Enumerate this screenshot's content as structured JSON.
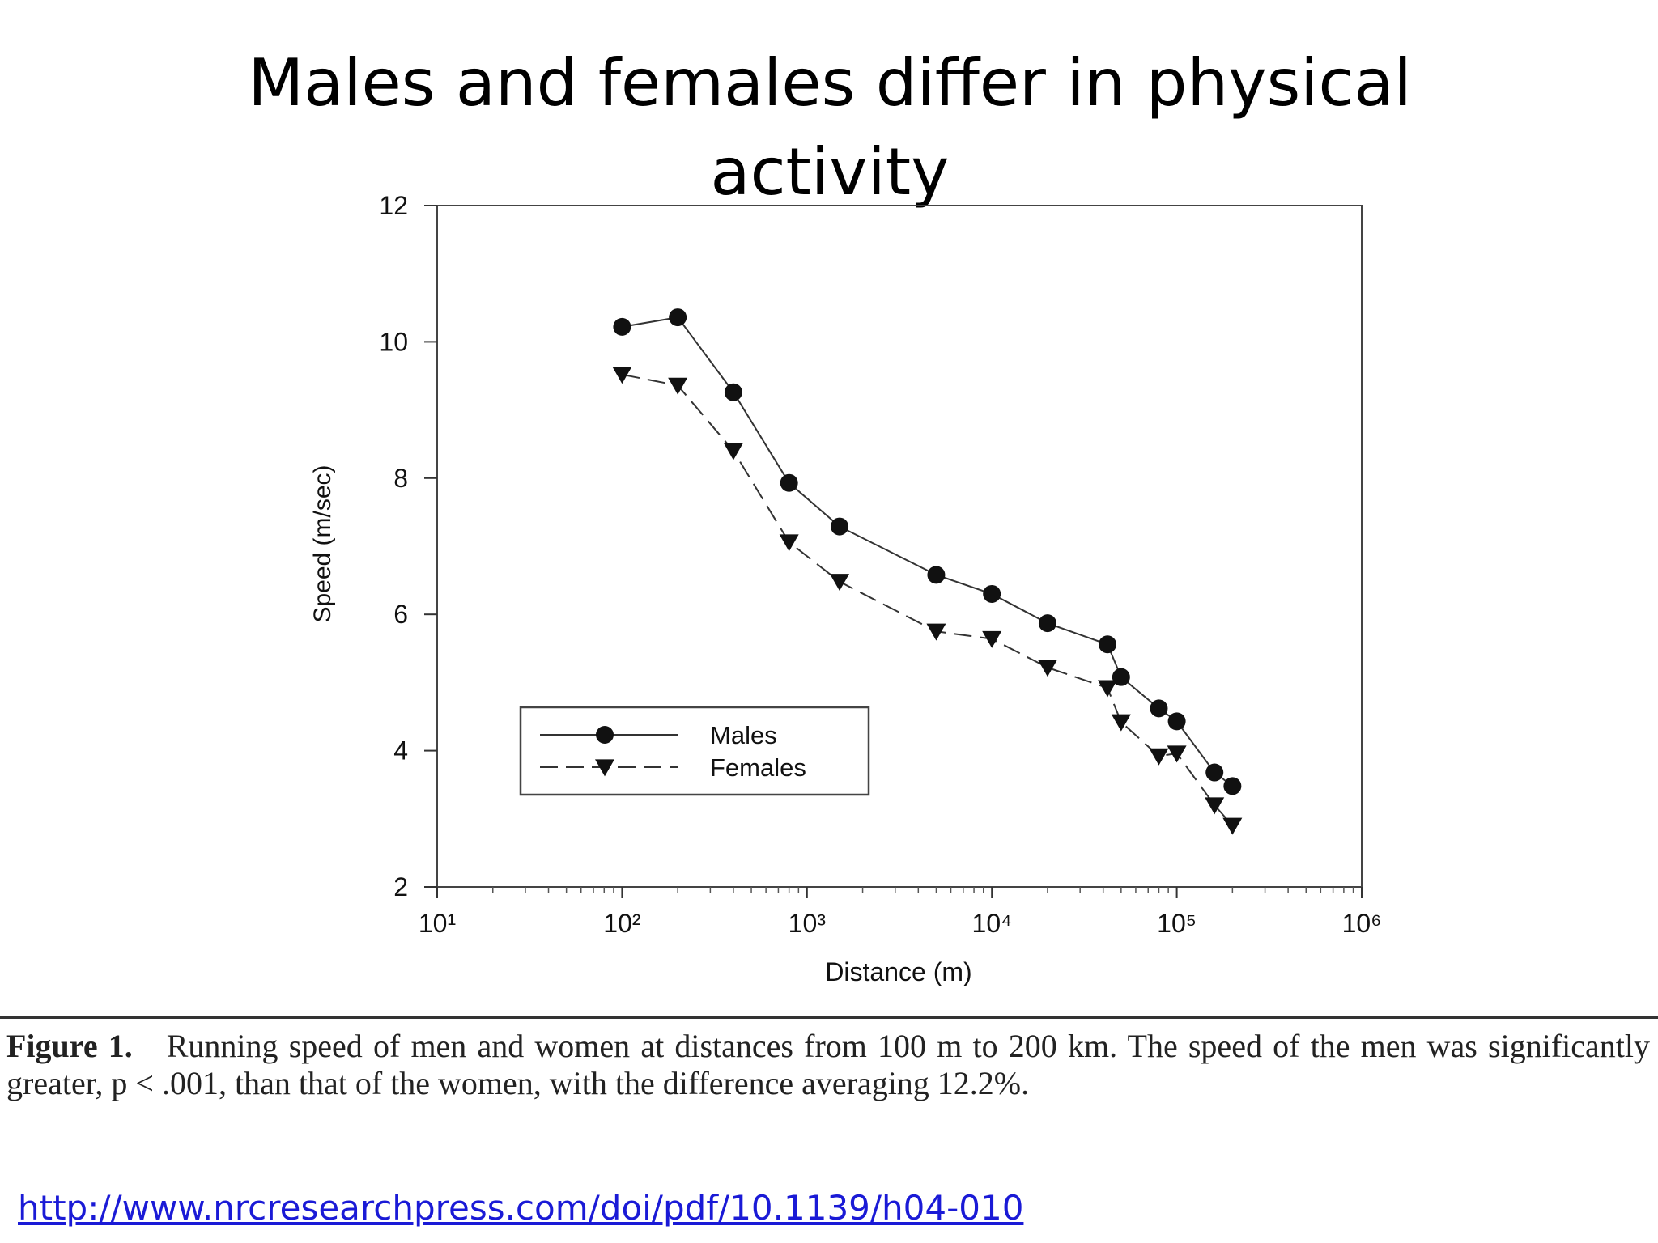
{
  "slide": {
    "title_line1": "Males and females differ in physical",
    "title_line2": "activity",
    "caption_label": "Figure 1.",
    "caption_text": "Running speed of men and women at distances from 100 m to 200 km. The speed of the men was significantly greater, p < .001, than that of the women, with the difference averaging 12.2%.",
    "link": "http://www.nrcresearchpress.com/doi/pdf/10.1139/h04-010"
  },
  "chart_data": {
    "type": "line",
    "xlabel": "Distance (m)",
    "ylabel": "Speed (m/sec)",
    "xscale": "log",
    "xlim": [
      10,
      1000000
    ],
    "ylim": [
      2,
      12
    ],
    "x_ticks": [
      {
        "value": 10,
        "label": "10¹"
      },
      {
        "value": 100,
        "label": "10²"
      },
      {
        "value": 1000,
        "label": "10³"
      },
      {
        "value": 10000,
        "label": "10⁴"
      },
      {
        "value": 100000,
        "label": "10⁵"
      },
      {
        "value": 1000000,
        "label": "10⁶"
      }
    ],
    "y_ticks": [
      2,
      4,
      6,
      8,
      10,
      12
    ],
    "legend_position": "lower-left",
    "grid": false,
    "series": [
      {
        "name": "Males",
        "marker": "circle",
        "line_style": "solid",
        "x": [
          100,
          200,
          400,
          800,
          1500,
          5000,
          10000,
          20000,
          42195,
          50000,
          80000,
          100000,
          160000,
          200000
        ],
        "y": [
          10.22,
          10.36,
          9.26,
          7.93,
          7.29,
          6.58,
          6.3,
          5.87,
          5.56,
          5.08,
          4.62,
          4.43,
          3.68,
          3.48
        ]
      },
      {
        "name": "Females",
        "marker": "triangle-down",
        "line_style": "dashed",
        "x": [
          100,
          200,
          400,
          800,
          1500,
          5000,
          10000,
          20000,
          42195,
          50000,
          80000,
          100000,
          160000,
          200000
        ],
        "y": [
          9.52,
          9.36,
          8.4,
          7.06,
          6.48,
          5.75,
          5.64,
          5.22,
          4.92,
          4.42,
          3.92,
          3.96,
          3.2,
          2.9
        ]
      }
    ]
  }
}
